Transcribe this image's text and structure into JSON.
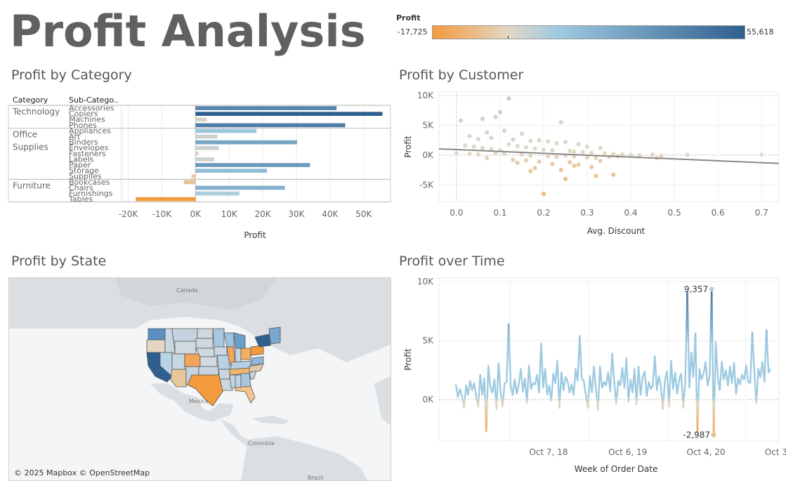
{
  "dashboard": {
    "title": "Profit Analysis",
    "legend": {
      "title": "Profit",
      "min_label": "-17,725",
      "max_label": "55,618",
      "min": -17725,
      "max": 55618
    },
    "colors": {
      "negative": "#f39a3c",
      "neutral": "#e3d7c4",
      "light_blue": "#9ecae1",
      "positive": "#2f5f8f",
      "grid": "#e6e6e6"
    },
    "sections": {
      "category": "Profit by Category",
      "customer": "Profit by Customer",
      "state": "Profit by State",
      "time": "Profit over Time"
    },
    "map": {
      "attribution": "© 2025 Mapbox © OpenStreetMap",
      "labels": {
        "canada": "Canada",
        "mexico": "Mexico",
        "colombia": "Colombia",
        "brazil": "Brazil"
      }
    }
  },
  "chart_data": [
    {
      "type": "bar",
      "orientation": "horizontal",
      "title": "Profit by Category",
      "column_headers": [
        "Category",
        "Sub-Catego.."
      ],
      "xlabel": "Profit",
      "xlim": [
        -22000,
        58000
      ],
      "xticks": [
        "-20K",
        "-10K",
        "0K",
        "10K",
        "20K",
        "30K",
        "40K",
        "50K"
      ],
      "groups": [
        {
          "category": "Technology",
          "rows": [
            {
              "label": "Accessories",
              "value": 41937
            },
            {
              "label": "Copiers",
              "value": 55618
            },
            {
              "label": "Machines",
              "value": 3385
            },
            {
              "label": "Phones",
              "value": 44516
            }
          ]
        },
        {
          "category": "Office Supplies",
          "rows": [
            {
              "label": "Appliances",
              "value": 18138
            },
            {
              "label": "Art",
              "value": 6528
            },
            {
              "label": "Binders",
              "value": 30222
            },
            {
              "label": "Envelopes",
              "value": 6964
            },
            {
              "label": "Fasteners",
              "value": 950
            },
            {
              "label": "Labels",
              "value": 5546
            },
            {
              "label": "Paper",
              "value": 34054
            },
            {
              "label": "Storage",
              "value": 21279
            },
            {
              "label": "Supplies",
              "value": -1189
            }
          ]
        },
        {
          "category": "Furniture",
          "rows": [
            {
              "label": "Bookcases",
              "value": -3473
            },
            {
              "label": "Chairs",
              "value": 26590
            },
            {
              "label": "Furnishings",
              "value": 13059
            },
            {
              "label": "Tables",
              "value": -17725
            }
          ]
        }
      ]
    },
    {
      "type": "scatter",
      "title": "Profit by Customer",
      "xlabel": "Avg. Discount",
      "ylabel": "Profit",
      "xlim": [
        -0.04,
        0.74
      ],
      "ylim": [
        -7800,
        10600
      ],
      "xticks": [
        "0.0",
        "0.1",
        "0.2",
        "0.3",
        "0.4",
        "0.5",
        "0.6",
        "0.7"
      ],
      "yticks": [
        "10K",
        "5K",
        "0K",
        "-5K"
      ],
      "trend_line": {
        "x": [
          -0.04,
          0.74
        ],
        "y": [
          1050,
          -1400
        ]
      },
      "points": [
        [
          0.12,
          9500
        ],
        [
          0.1,
          7200
        ],
        [
          0.01,
          5800
        ],
        [
          0.06,
          6100
        ],
        [
          0.24,
          5500
        ],
        [
          0.09,
          6400
        ],
        [
          0.11,
          4100
        ],
        [
          0.07,
          3800
        ],
        [
          0.15,
          3600
        ],
        [
          0.03,
          3200
        ],
        [
          0.05,
          2700
        ],
        [
          0.08,
          2900
        ],
        [
          0.13,
          2600
        ],
        [
          0.17,
          2400
        ],
        [
          0.19,
          2500
        ],
        [
          0.21,
          2300
        ],
        [
          0.23,
          2000
        ],
        [
          0.25,
          2200
        ],
        [
          0.28,
          1800
        ],
        [
          0.3,
          1400
        ],
        [
          0.33,
          1200
        ],
        [
          0.12,
          1800
        ],
        [
          0.14,
          1500
        ],
        [
          0.16,
          1300
        ],
        [
          0.18,
          1100
        ],
        [
          0.2,
          900
        ],
        [
          0.22,
          800
        ],
        [
          0.26,
          700
        ],
        [
          0.02,
          1600
        ],
        [
          0.04,
          1400
        ],
        [
          0.06,
          1200
        ],
        [
          0.08,
          1000
        ],
        [
          0.1,
          800
        ],
        [
          0.27,
          600
        ],
        [
          0.29,
          500
        ],
        [
          0.31,
          400
        ],
        [
          0.34,
          300
        ],
        [
          0.36,
          200
        ],
        [
          0.38,
          100
        ],
        [
          0.4,
          0
        ],
        [
          0.42,
          -50
        ],
        [
          0.45,
          100
        ],
        [
          0.47,
          -100
        ],
        [
          0.53,
          50
        ],
        [
          0.7,
          50
        ],
        [
          0.0,
          300
        ],
        [
          0.03,
          200
        ],
        [
          0.05,
          100
        ],
        [
          0.09,
          300
        ],
        [
          0.11,
          200
        ],
        [
          0.15,
          100
        ],
        [
          0.17,
          -100
        ],
        [
          0.21,
          -200
        ],
        [
          0.23,
          -300
        ],
        [
          0.25,
          -100
        ],
        [
          0.27,
          -200
        ],
        [
          0.3,
          -400
        ],
        [
          0.32,
          -500
        ],
        [
          0.35,
          -300
        ],
        [
          0.37,
          -200
        ],
        [
          0.46,
          -500
        ],
        [
          0.07,
          -500
        ],
        [
          0.13,
          -800
        ],
        [
          0.16,
          -900
        ],
        [
          0.14,
          -1300
        ],
        [
          0.19,
          -1100
        ],
        [
          0.22,
          -1500
        ],
        [
          0.26,
          -1200
        ],
        [
          0.28,
          -1600
        ],
        [
          0.33,
          -1000
        ],
        [
          0.18,
          -2200
        ],
        [
          0.24,
          -2500
        ],
        [
          0.27,
          -1800
        ],
        [
          0.31,
          -2000
        ],
        [
          0.17,
          -2700
        ],
        [
          0.25,
          -4000
        ],
        [
          0.32,
          -3500
        ],
        [
          0.36,
          -3300
        ],
        [
          0.2,
          -6500
        ]
      ]
    },
    {
      "type": "line",
      "title": "Profit over Time",
      "xlabel": "Week of Order Date",
      "ylabel": "Profit",
      "ylim": [
        -3500,
        10300
      ],
      "yticks": [
        "10K",
        "5K",
        "0K"
      ],
      "xticks": [
        "Oct 7, 18",
        "Oct 6, 19",
        "Oct 4, 20",
        "Oct 3, 21"
      ],
      "annotations": [
        {
          "label": "9,357",
          "value": 9357
        },
        {
          "label": "-2,987",
          "value": -2987
        }
      ],
      "values": [
        1300,
        200,
        900,
        300,
        -700,
        1200,
        400,
        1600,
        800,
        1400,
        300,
        -600,
        2100,
        400,
        1800,
        -2700,
        2900,
        1100,
        600,
        1700,
        -800,
        3100,
        700,
        -600,
        1400,
        1500,
        6400,
        1200,
        400,
        1700,
        500,
        1300,
        2600,
        700,
        1800,
        -300,
        2900,
        900,
        1400,
        1300,
        2100,
        600,
        4800,
        1000,
        2600,
        400,
        1200,
        -100,
        2200,
        1400,
        3300,
        -700,
        2300,
        800,
        1900,
        1600,
        600,
        1300,
        400,
        2600,
        1600,
        5400,
        1800,
        1600,
        400,
        -700,
        2000,
        600,
        2800,
        900,
        -900,
        2800,
        1000,
        1500,
        1200,
        2300,
        700,
        3900,
        1600,
        -400,
        1600,
        1200,
        2700,
        1000,
        3500,
        -200,
        1700,
        600,
        2600,
        -400,
        2800,
        400,
        1900,
        2400,
        300,
        1500,
        900,
        1200,
        3700,
        800,
        2000,
        1100,
        -800,
        1700,
        2400,
        -600,
        3300,
        900,
        2300,
        500,
        1700,
        2200,
        -700,
        1500,
        9100,
        1000,
        4000,
        1900,
        5600,
        -2800,
        2600,
        1700,
        2200,
        3200,
        1200,
        2000,
        9357,
        -2987,
        4900,
        1900,
        800,
        3200,
        1700,
        2500,
        1200,
        2800,
        1400,
        3100,
        500,
        1800,
        1300,
        2100,
        1700,
        2900,
        1500,
        1400,
        5700,
        2400,
        -300,
        2600,
        1900,
        3200,
        1500,
        5900,
        2300,
        2600
      ]
    }
  ]
}
